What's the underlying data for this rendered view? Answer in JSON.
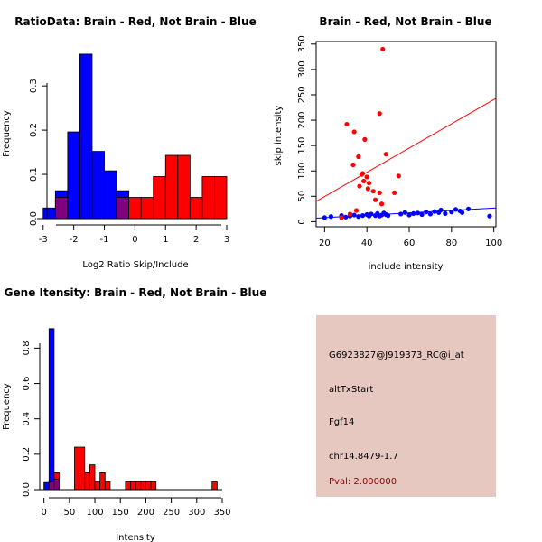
{
  "chart_data": [
    {
      "type": "bar",
      "title": "RatioData: Brain - Red, Not Brain - Blue",
      "xlabel": "Log2 Ratio Skip/Include",
      "ylabel": "Frequency",
      "xlim": [
        -3.2,
        3.0
      ],
      "ylim": [
        0,
        0.38
      ],
      "xticks": [
        -3,
        -2,
        -1,
        0,
        1,
        2,
        3
      ],
      "yticks": [
        0.0,
        0.1,
        0.2,
        0.3
      ],
      "series": [
        {
          "name": "Not Brain",
          "color": "#0000ff",
          "bins": [
            {
              "x0": -3.0,
              "x1": -2.6,
              "value": 0.024
            },
            {
              "x0": -2.6,
              "x1": -2.2,
              "value": 0.063
            },
            {
              "x0": -2.2,
              "x1": -1.8,
              "value": 0.196
            },
            {
              "x0": -1.8,
              "x1": -1.4,
              "value": 0.372
            },
            {
              "x0": -1.4,
              "x1": -1.0,
              "value": 0.152
            },
            {
              "x0": -1.0,
              "x1": -0.6,
              "value": 0.108
            },
            {
              "x0": -0.6,
              "x1": -0.2,
              "value": 0.063
            }
          ]
        },
        {
          "name": "Brain",
          "color": "#ff0000",
          "bins": [
            {
              "x0": -2.6,
              "x1": -2.2,
              "value": 0.048
            },
            {
              "x0": -0.6,
              "x1": -0.2,
              "value": 0.048
            },
            {
              "x0": -0.2,
              "x1": 0.2,
              "value": 0.048
            },
            {
              "x0": 0.2,
              "x1": 0.6,
              "value": 0.048
            },
            {
              "x0": 0.6,
              "x1": 1.0,
              "value": 0.095
            },
            {
              "x0": 1.0,
              "x1": 1.4,
              "value": 0.143
            },
            {
              "x0": 1.4,
              "x1": 1.8,
              "value": 0.143
            },
            {
              "x0": 1.8,
              "x1": 2.2,
              "value": 0.048
            },
            {
              "x0": 2.2,
              "x1": 2.6,
              "value": 0.095
            },
            {
              "x0": 2.6,
              "x1": 3.0,
              "value": 0.095
            }
          ]
        }
      ],
      "overlap_color": "#800080"
    },
    {
      "type": "scatter",
      "title": "Brain - Red, Not Brain - Blue",
      "xlabel": "include intensity",
      "ylabel": "skip intensity",
      "xlim": [
        16,
        101
      ],
      "ylim": [
        -10,
        355
      ],
      "xticks": [
        20,
        40,
        60,
        80,
        100
      ],
      "yticks": [
        0,
        50,
        100,
        150,
        200,
        250,
        300,
        350
      ],
      "series": [
        {
          "name": "Brain",
          "color": "#ff0000",
          "points": [
            [
              47.5,
              340
            ],
            [
              46,
              213
            ],
            [
              30.5,
              192
            ],
            [
              34,
              177
            ],
            [
              39,
              162
            ],
            [
              49,
              133
            ],
            [
              36,
              128
            ],
            [
              33.5,
              112
            ],
            [
              38,
              95
            ],
            [
              37.5,
              93
            ],
            [
              40,
              88
            ],
            [
              55,
              90
            ],
            [
              38.5,
              80
            ],
            [
              41,
              76
            ],
            [
              36.5,
              70
            ],
            [
              40.5,
              65
            ],
            [
              43,
              60
            ],
            [
              46,
              57
            ],
            [
              53,
              57
            ],
            [
              44,
              43
            ],
            [
              47,
              35
            ],
            [
              32,
              15
            ],
            [
              35,
              22
            ],
            [
              28,
              8
            ]
          ],
          "fit_line": [
            [
              16,
              40
            ],
            [
              101,
              243
            ]
          ]
        },
        {
          "name": "Not Brain",
          "color": "#0000ff",
          "points": [
            [
              20,
              8
            ],
            [
              23,
              10
            ],
            [
              28,
              12
            ],
            [
              30,
              9
            ],
            [
              32,
              11
            ],
            [
              34,
              13
            ],
            [
              36,
              10
            ],
            [
              38,
              12
            ],
            [
              40,
              14
            ],
            [
              41,
              11
            ],
            [
              42,
              15
            ],
            [
              44,
              12
            ],
            [
              45,
              16
            ],
            [
              46,
              11
            ],
            [
              47,
              13
            ],
            [
              48,
              17
            ],
            [
              49,
              14
            ],
            [
              50,
              12
            ],
            [
              56,
              15
            ],
            [
              58,
              18
            ],
            [
              60,
              13
            ],
            [
              62,
              16
            ],
            [
              64,
              17
            ],
            [
              66,
              14
            ],
            [
              68,
              19
            ],
            [
              70,
              15
            ],
            [
              72,
              20
            ],
            [
              74,
              18
            ],
            [
              75,
              23
            ],
            [
              77,
              16
            ],
            [
              80,
              19
            ],
            [
              82,
              24
            ],
            [
              84,
              21
            ],
            [
              85,
              18
            ],
            [
              88,
              25
            ],
            [
              98,
              11
            ]
          ],
          "fit_line": [
            [
              16,
              7
            ],
            [
              101,
              27
            ]
          ]
        }
      ]
    },
    {
      "type": "bar",
      "title": "Gene Itensity: Brain - Red, Not Brain - Blue",
      "xlabel": "Intensity",
      "ylabel": "Frequency",
      "xlim": [
        -10,
        350
      ],
      "ylim": [
        0,
        0.95
      ],
      "xticks": [
        0,
        50,
        100,
        150,
        200,
        250,
        300,
        350
      ],
      "yticks": [
        0.0,
        0.2,
        0.4,
        0.6,
        0.8
      ],
      "series": [
        {
          "name": "Not Brain",
          "color": "#0000ff",
          "bins": [
            {
              "x0": 0,
              "x1": 10,
              "value": 0.04
            },
            {
              "x0": 10,
              "x1": 20,
              "value": 0.91
            },
            {
              "x0": 20,
              "x1": 30,
              "value": 0.06
            }
          ]
        },
        {
          "name": "Brain",
          "color": "#ff0000",
          "bins": [
            {
              "x0": 10,
              "x1": 20,
              "value": 0.045
            },
            {
              "x0": 20,
              "x1": 30,
              "value": 0.095
            },
            {
              "x0": 60,
              "x1": 80,
              "value": 0.24
            },
            {
              "x0": 80,
              "x1": 90,
              "value": 0.095
            },
            {
              "x0": 90,
              "x1": 100,
              "value": 0.14
            },
            {
              "x0": 100,
              "x1": 110,
              "value": 0.045
            },
            {
              "x0": 110,
              "x1": 120,
              "value": 0.095
            },
            {
              "x0": 120,
              "x1": 130,
              "value": 0.045
            },
            {
              "x0": 160,
              "x1": 170,
              "value": 0.045
            },
            {
              "x0": 170,
              "x1": 180,
              "value": 0.045
            },
            {
              "x0": 180,
              "x1": 190,
              "value": 0.045
            },
            {
              "x0": 190,
              "x1": 200,
              "value": 0.045
            },
            {
              "x0": 200,
              "x1": 210,
              "value": 0.045
            },
            {
              "x0": 210,
              "x1": 220,
              "value": 0.045
            },
            {
              "x0": 330,
              "x1": 340,
              "value": 0.045
            }
          ]
        }
      ],
      "overlap_color": "#800080"
    }
  ],
  "info_panel": {
    "background": "#e6c8c0",
    "probe_id": "G6923827@J919373_RC@i_at",
    "event_type": "altTxStart",
    "gene": "Fgf14",
    "location": "chr14.8479-1.7",
    "pval": "Pval: 2.000000",
    "pval_color": "#8b0000"
  }
}
